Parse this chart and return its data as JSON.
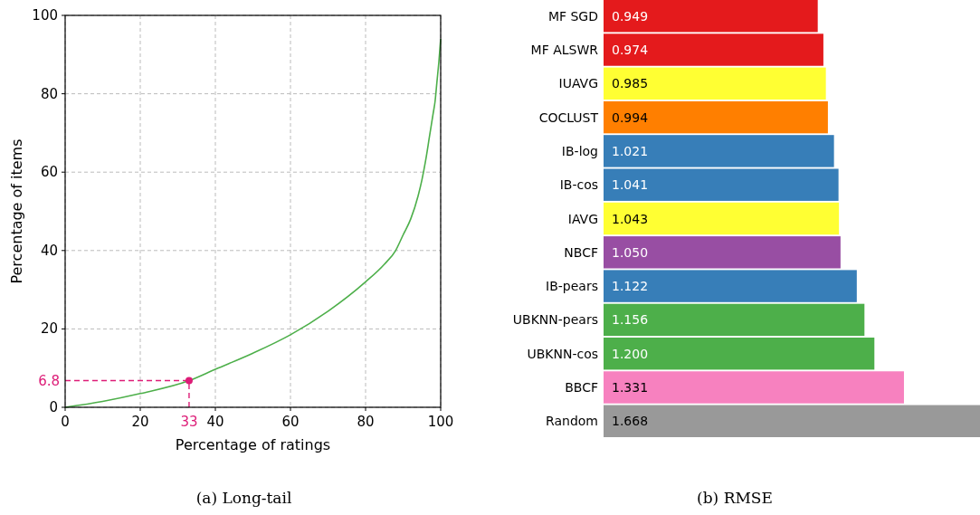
{
  "chart_data": [
    {
      "type": "line",
      "title": "(a) Long-tail",
      "xlabel": "Percentage of ratings",
      "ylabel": "Percentage of items",
      "xlim": [
        0,
        100
      ],
      "ylim": [
        0,
        100
      ],
      "xticks": [
        0,
        20,
        40,
        60,
        80,
        100
      ],
      "yticks": [
        0,
        20,
        40,
        60,
        80,
        100
      ],
      "grid": true,
      "line_style": "solid",
      "series": [
        {
          "type": "line",
          "color": "#4daf4a",
          "x": [
            0,
            10,
            20,
            33,
            40,
            50,
            60,
            70,
            80,
            85,
            88,
            90,
            92,
            94,
            95,
            96,
            97,
            98,
            98.5,
            99,
            99.5,
            100
          ],
          "values": [
            0,
            1.5,
            3.5,
            6.8,
            9.7,
            13.8,
            18.5,
            24.5,
            32,
            36.5,
            40,
            44,
            48,
            54,
            58,
            63,
            69,
            75,
            78,
            83,
            88,
            94
          ]
        },
        {
          "type": "scatter",
          "color": "#dd1c77",
          "marker": "circle",
          "x": [
            33
          ],
          "values": [
            6.8
          ]
        }
      ],
      "ref_lines": [
        {
          "axis": "x",
          "value": 33,
          "label": "33",
          "color": "#dd1c77",
          "line_style": "dashed"
        },
        {
          "axis": "y",
          "value": 6.8,
          "label": "6.8",
          "color": "#dd1c77",
          "line_style": "dashed"
        }
      ]
    },
    {
      "type": "bar",
      "title": "(b) RMSE",
      "orientation": "horizontal",
      "data_labels": true,
      "categories": [
        "MF SGD",
        "MF ALSWR",
        "IUAVG",
        "COCLUST",
        "IB-log",
        "IB-cos",
        "IAVG",
        "NBCF",
        "IB-pears",
        "UBKNN-pears",
        "UBKNN-cos",
        "BBCF",
        "Random"
      ],
      "values": [
        0.949,
        0.974,
        0.985,
        0.994,
        1.021,
        1.041,
        1.043,
        1.05,
        1.122,
        1.156,
        1.2,
        1.331,
        1.668
      ],
      "value_labels": [
        "0.949",
        "0.974",
        "0.985",
        "0.994",
        "1.021",
        "1.041",
        "1.043",
        "1.050",
        "1.122",
        "1.156",
        "1.200",
        "1.331",
        "1.668"
      ],
      "colors": [
        "#e41a1c",
        "#e41a1c",
        "#ffff33",
        "#ff7f00",
        "#377eb8",
        "#377eb8",
        "#ffff33",
        "#984ea3",
        "#377eb8",
        "#4daf4a",
        "#4daf4a",
        "#f781bf",
        "#999999"
      ]
    }
  ]
}
